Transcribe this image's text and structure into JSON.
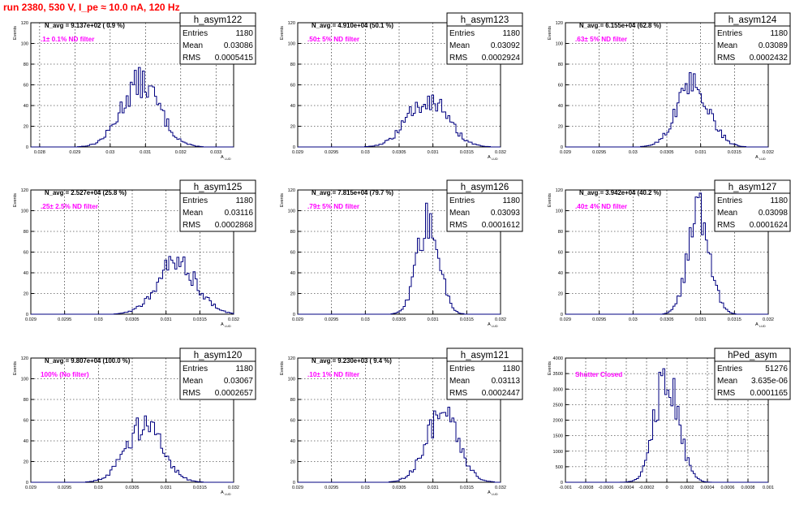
{
  "header": {
    "run_title": "run 2380,   530 V, I_pe ≈ 10.0 nA, 120 Hz"
  },
  "stat_labels": {
    "entries": "Entries",
    "mean": "Mean",
    "rms": "RMS"
  },
  "chart_data": [
    {
      "type": "histogram",
      "name": "h_asym122",
      "ylabel": "Events",
      "xlabel": "A",
      "navg": "N_avg = 9.137e+02 ( 0.9 %)",
      "filter": ".1± 0.1% ND filter",
      "entries": "1180",
      "mean": "0.03086",
      "rms": "0.0005415",
      "xlim": [
        0.02775,
        0.0335
      ],
      "ylim": [
        0,
        120
      ],
      "xticks": [
        "0.028",
        "0.029",
        "0.03",
        "0.031",
        "0.032",
        "0.033"
      ],
      "xtick_values": [
        0.028,
        0.029,
        0.03,
        0.031,
        0.032,
        0.033
      ],
      "yticks": [
        0,
        20,
        40,
        60,
        80,
        100,
        120
      ],
      "center": 0.03086,
      "width": 0.00054,
      "peak": 62
    },
    {
      "type": "histogram",
      "name": "h_asym123",
      "ylabel": "Events",
      "xlabel": "A",
      "navg": "N_avg = 4.910e+04 (50.1 %)",
      "filter": ".50± 5% ND filter",
      "entries": "1180",
      "mean": "0.03092",
      "rms": "0.0002924",
      "xlim": [
        0.029,
        0.032
      ],
      "ylim": [
        0,
        120
      ],
      "xticks": [
        "0.029",
        "0.0295",
        "0.03",
        "0.0305",
        "0.031",
        "0.0315",
        "0.032"
      ],
      "xtick_values": [
        0.029,
        0.0295,
        0.03,
        0.0305,
        0.031,
        0.0315,
        0.032
      ],
      "yticks": [
        0,
        20,
        40,
        60,
        80,
        100,
        120
      ],
      "center": 0.03092,
      "width": 0.00029,
      "peak": 47
    },
    {
      "type": "histogram",
      "name": "h_asym124",
      "ylabel": "Events",
      "xlabel": "A",
      "navg": "N_avg = 6.155e+04 (62.8 %)",
      "filter": ".63± 5% ND filter",
      "entries": "1180",
      "mean": "0.03089",
      "rms": "0.0002432",
      "xlim": [
        0.029,
        0.032
      ],
      "ylim": [
        0,
        120
      ],
      "xticks": [
        "0.029",
        "0.0295",
        "0.03",
        "0.0305",
        "0.031",
        "0.0315",
        "0.032"
      ],
      "xtick_values": [
        0.029,
        0.0295,
        0.03,
        0.0305,
        0.031,
        0.0315,
        0.032
      ],
      "yticks": [
        0,
        20,
        40,
        60,
        80,
        100,
        120
      ],
      "center": 0.03089,
      "width": 0.00024,
      "peak": 60
    },
    {
      "type": "histogram",
      "name": "h_asym125",
      "ylabel": "Events",
      "xlabel": "A",
      "navg": "N_avg = 2.527e+04 (25.8 %)",
      "filter": ".25± 2.5% ND filter",
      "entries": "1180",
      "mean": "0.03116",
      "rms": "0.0002868",
      "xlim": [
        0.029,
        0.032
      ],
      "ylim": [
        0,
        120
      ],
      "xticks": [
        "0.029",
        "0.0295",
        "0.03",
        "0.0305",
        "0.031",
        "0.0315",
        "0.032"
      ],
      "xtick_values": [
        0.029,
        0.0295,
        0.03,
        0.0305,
        0.031,
        0.0315,
        0.032
      ],
      "yticks": [
        0,
        20,
        40,
        60,
        80,
        100,
        120
      ],
      "center": 0.03116,
      "width": 0.00029,
      "peak": 50
    },
    {
      "type": "histogram",
      "name": "h_asym126",
      "ylabel": "Events",
      "xlabel": "A",
      "navg": "N_avg = 7.815e+04 (79.7 %)",
      "filter": ".79± 5% ND filter",
      "entries": "1180",
      "mean": "0.03093",
      "rms": "0.0001612",
      "xlim": [
        0.029,
        0.032
      ],
      "ylim": [
        0,
        120
      ],
      "xticks": [
        "0.029",
        "0.0295",
        "0.03",
        "0.0305",
        "0.031",
        "0.0315",
        "0.032"
      ],
      "xtick_values": [
        0.029,
        0.0295,
        0.03,
        0.0305,
        0.031,
        0.0315,
        0.032
      ],
      "yticks": [
        0,
        20,
        40,
        60,
        80,
        100,
        120
      ],
      "center": 0.03093,
      "width": 0.00016,
      "peak": 90
    },
    {
      "type": "histogram",
      "name": "h_asym127",
      "ylabel": "Events",
      "xlabel": "A",
      "navg": "N_avg = 3.942e+04 (40.2 %)",
      "filter": ".40± 4% ND filter",
      "entries": "1180",
      "mean": "0.03098",
      "rms": "0.0001624",
      "xlim": [
        0.029,
        0.032
      ],
      "ylim": [
        0,
        120
      ],
      "xticks": [
        "0.029",
        "0.0295",
        "0.03",
        "0.0305",
        "0.031",
        "0.0315",
        "0.032"
      ],
      "xtick_values": [
        0.029,
        0.0295,
        0.03,
        0.0305,
        0.031,
        0.0315,
        0.032
      ],
      "yticks": [
        0,
        20,
        40,
        60,
        80,
        100,
        120
      ],
      "center": 0.03098,
      "width": 0.00016,
      "peak": 100
    },
    {
      "type": "histogram",
      "name": "h_asym120",
      "ylabel": "Events",
      "xlabel": "A",
      "navg": "N_avg = 9.807e+04 (100.0 %)",
      "filter": "100% (No filter)",
      "entries": "1180",
      "mean": "0.03067",
      "rms": "0.0002657",
      "xlim": [
        0.029,
        0.032
      ],
      "ylim": [
        0,
        120
      ],
      "xticks": [
        "0.029",
        "0.0295",
        "0.03",
        "0.0305",
        "0.031",
        "0.0315",
        "0.032"
      ],
      "xtick_values": [
        0.029,
        0.0295,
        0.03,
        0.0305,
        0.031,
        0.0315,
        0.032
      ],
      "yticks": [
        0,
        20,
        40,
        60,
        80,
        100,
        120
      ],
      "center": 0.03067,
      "width": 0.00027,
      "peak": 55
    },
    {
      "type": "histogram",
      "name": "h_asym121",
      "ylabel": "Events",
      "xlabel": "A",
      "navg": "N_avg = 9.230e+03 ( 9.4 %)",
      "filter": ".10± 1% ND filter",
      "entries": "1180",
      "mean": "0.03113",
      "rms": "0.0002447",
      "xlim": [
        0.029,
        0.032
      ],
      "ylim": [
        0,
        120
      ],
      "xticks": [
        "0.029",
        "0.0295",
        "0.03",
        "0.0305",
        "0.031",
        "0.0315",
        "0.032"
      ],
      "xtick_values": [
        0.029,
        0.0295,
        0.03,
        0.0305,
        0.031,
        0.0315,
        0.032
      ],
      "yticks": [
        0,
        20,
        40,
        60,
        80,
        100,
        120
      ],
      "center": 0.03113,
      "width": 0.00024,
      "peak": 65
    },
    {
      "type": "histogram",
      "name": "hPed_asym",
      "ylabel": "Events",
      "xlabel": "",
      "navg": "",
      "filter": "Shutter Closed",
      "entries": "51276",
      "mean": "3.635e-06",
      "rms": "0.0001165",
      "xlim": [
        -0.001,
        0.001
      ],
      "ylim": [
        0,
        4000
      ],
      "xticks": [
        "-0.001",
        "-0.0008",
        "-0.0006",
        "-0.0004",
        "-0.0002",
        "0",
        "0.0002",
        "0.0004",
        "0.0006",
        "0.0008",
        "0.001"
      ],
      "xtick_values": [
        -0.001,
        -0.0008,
        -0.0006,
        -0.0004,
        -0.0002,
        0,
        0.0002,
        0.0004,
        0.0006,
        0.0008,
        0.001
      ],
      "yticks": [
        0,
        500,
        1000,
        1500,
        2000,
        2500,
        3000,
        3500,
        4000
      ],
      "center": 0.0,
      "width": 0.000116,
      "peak": 3500
    }
  ]
}
